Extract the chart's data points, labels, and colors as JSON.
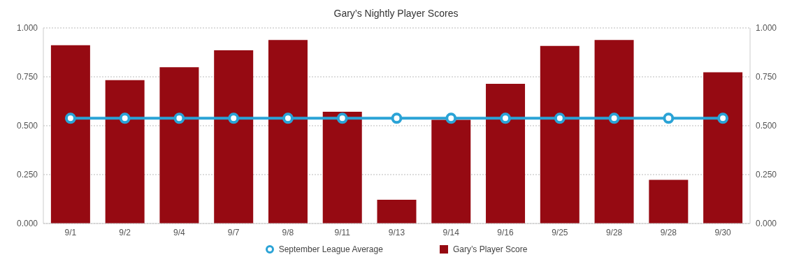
{
  "chart_data": {
    "type": "bar",
    "title": "Gary’s Nightly Player Scores",
    "categories": [
      "9/1",
      "9/2",
      "9/4",
      "9/7",
      "9/8",
      "9/11",
      "9/13",
      "9/14",
      "9/16",
      "9/25",
      "9/28",
      "9/28",
      "9/30"
    ],
    "series": [
      {
        "name": "September League Average",
        "type": "line",
        "color": "#2aa3d6",
        "values": [
          0.538,
          0.538,
          0.538,
          0.538,
          0.538,
          0.538,
          0.538,
          0.538,
          0.538,
          0.538,
          0.538,
          0.538,
          0.538
        ]
      },
      {
        "name": "Gary’s Player Score",
        "color": "#960a12",
        "values": [
          0.912,
          0.733,
          0.799,
          0.886,
          0.938,
          0.571,
          0.121,
          0.53,
          0.714,
          0.908,
          0.938,
          0.223,
          0.773
        ]
      }
    ],
    "ylim": [
      0,
      1
    ],
    "yticks": [
      {
        "value": 0,
        "label": "0.000"
      },
      {
        "value": 0.25,
        "label": "0.250"
      },
      {
        "value": 0.5,
        "label": "0.500"
      },
      {
        "value": 0.75,
        "label": "0.750"
      },
      {
        "value": 1,
        "label": "1.000"
      }
    ],
    "y2lim": [
      0,
      1
    ],
    "y2ticks": [
      {
        "value": 0,
        "label": "0.000"
      },
      {
        "value": 0.25,
        "label": "0.250"
      },
      {
        "value": 0.5,
        "label": "0.500"
      },
      {
        "value": 0.75,
        "label": "0.750"
      },
      {
        "value": 1,
        "label": "1.000"
      }
    ],
    "grid": "y",
    "legend": "bottom",
    "marker": "circle",
    "line_style": "solid"
  }
}
